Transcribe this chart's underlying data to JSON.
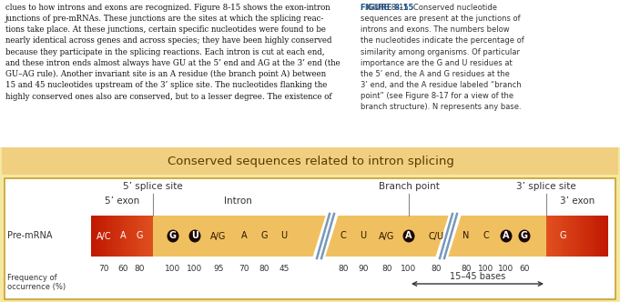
{
  "title": "Conserved sequences related to intron splicing",
  "title_bg": "#f0d080",
  "outer_bg": "#f5e8a0",
  "inner_bg": "#ffffff",
  "bar_bg": "#f0c060",
  "text_color": "#333333",
  "dark_label": "#5a3a00",
  "label_pre_mrna": "Pre-mRNA",
  "label_freq": "Frequency of\noccurrence (%)",
  "label_5exon": "5’ exon",
  "label_3exon": "3’ exon",
  "label_intron": "Intron",
  "label_5splice": "5’ splice site",
  "label_branch": "Branch point",
  "label_3splice": "3’ splice site",
  "nucleotides_5exon": [
    "A/C",
    "A",
    "G"
  ],
  "nucleotides_intron1": [
    "G",
    "U",
    "A/G",
    "A",
    "G",
    "U"
  ],
  "nucleotides_intron2": [
    "C",
    "U",
    "A/G",
    "A",
    "C/U"
  ],
  "nucleotides_intron3": [
    "N",
    "C",
    "A",
    "G"
  ],
  "nucleotides_3exon": [
    "G"
  ],
  "bold_5exon": [
    false,
    false,
    false
  ],
  "bold_intron1": [
    true,
    true,
    false,
    false,
    false,
    false
  ],
  "bold_intron2": [
    false,
    false,
    false,
    true,
    false
  ],
  "bold_intron3": [
    false,
    false,
    true,
    true
  ],
  "bold_3exon": [
    false
  ],
  "freq_5exon": [
    "70",
    "60",
    "80"
  ],
  "freq_intron1": [
    "100",
    "100",
    "95",
    "70",
    "80",
    "45"
  ],
  "freq_intron2": [
    "80",
    "90",
    "80",
    "100",
    "80"
  ],
  "freq_intron3": [
    "80",
    "100",
    "100",
    "60"
  ],
  "exon_red_left": "#c01800",
  "exon_red_mid": "#e05020",
  "exon_red_right": "#c01800",
  "slash_color": "#7799bb",
  "circle_color": "#1a0800",
  "nuc_dark": "#2a1200",
  "nuc_white": "#ffffff"
}
